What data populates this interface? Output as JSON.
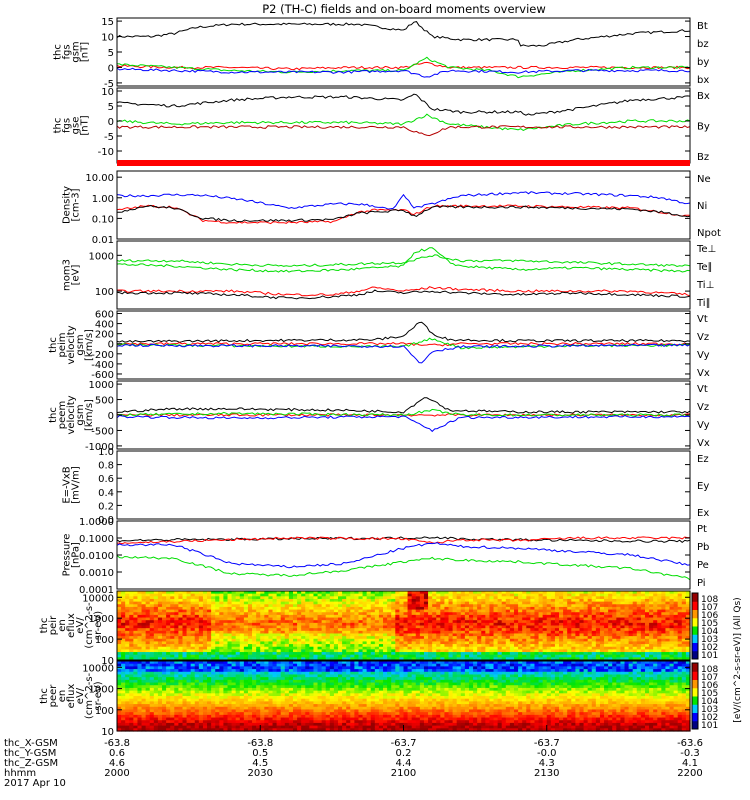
{
  "title": "P2 (TH-C) fields and on-board moments overview",
  "colors": {
    "black": "#000000",
    "red": "#ff0000",
    "green": "#00dd00",
    "blue": "#0000ff",
    "darkred": "#b40000",
    "navy": "#000080"
  },
  "chart_data": [
    {
      "type": "line",
      "ylabel": [
        "thc",
        "fgs",
        "gsm",
        "[nT]"
      ],
      "yticks": [
        "15",
        "10",
        "5",
        "0",
        "-5"
      ],
      "ylim": [
        -6,
        16
      ],
      "legend": [
        {
          "name": "Bt",
          "color": "#000000"
        },
        {
          "name": "bz",
          "color": "#ff0000"
        },
        {
          "name": "by",
          "color": "#00dd00"
        },
        {
          "name": "bx",
          "color": "#0000ff"
        }
      ],
      "series": [
        {
          "name": "Bt",
          "x": [
            0,
            0.06,
            0.1,
            0.14,
            0.2,
            0.3,
            0.42,
            0.5,
            0.52,
            0.55,
            0.6,
            0.7,
            0.7,
            0.74,
            0.8,
            0.9,
            1
          ],
          "y": [
            10,
            10,
            11,
            13,
            14,
            14,
            14,
            12,
            15,
            10,
            9,
            9,
            7,
            7,
            9,
            11,
            12
          ]
        },
        {
          "name": "bz",
          "x": [
            0,
            0.1,
            0.2,
            0.3,
            0.4,
            0.5,
            0.54,
            0.58,
            0.7,
            0.8,
            0.9,
            1
          ],
          "y": [
            0.5,
            0,
            0,
            -0.5,
            0,
            0,
            1.5,
            0,
            0,
            0,
            0,
            0
          ]
        },
        {
          "name": "by",
          "x": [
            0,
            0.1,
            0.2,
            0.3,
            0.4,
            0.5,
            0.54,
            0.58,
            0.65,
            0.7,
            0.75,
            0.8,
            0.9,
            1
          ],
          "y": [
            1,
            0,
            -1,
            -1.5,
            -1,
            -1,
            3,
            0,
            -1,
            -3,
            -2,
            -1,
            0,
            0
          ]
        },
        {
          "name": "bx",
          "x": [
            0,
            0.1,
            0.2,
            0.3,
            0.4,
            0.5,
            0.54,
            0.58,
            0.7,
            0.8,
            0.9,
            1
          ],
          "y": [
            -0.5,
            -1,
            -1.5,
            -1.5,
            -1.5,
            -1,
            -3,
            -1,
            -1.5,
            -1,
            -1,
            -1
          ]
        }
      ]
    },
    {
      "type": "line",
      "ylabel": [
        "thc",
        "fgs",
        "gse",
        "[nT]"
      ],
      "yticks": [
        "10",
        "5",
        "0",
        "-5",
        "-10"
      ],
      "ylim": [
        -14,
        11
      ],
      "legend": [
        {
          "name": "Bx",
          "color": "#000000"
        },
        {
          "name": "By",
          "color": "#00dd00"
        },
        {
          "name": "Bz",
          "color": "#b40000"
        }
      ],
      "series": [
        {
          "name": "Bx",
          "x": [
            0,
            0.1,
            0.2,
            0.3,
            0.4,
            0.5,
            0.52,
            0.55,
            0.6,
            0.7,
            0.72,
            0.8,
            0.9,
            1
          ],
          "y": [
            6,
            5,
            7,
            8,
            8,
            7,
            9,
            4,
            3,
            3,
            2,
            4,
            7,
            8
          ]
        },
        {
          "name": "By",
          "x": [
            0,
            0.1,
            0.2,
            0.3,
            0.4,
            0.5,
            0.54,
            0.58,
            0.7,
            0.8,
            0.9,
            1
          ],
          "y": [
            0,
            -1,
            -0.5,
            -0.5,
            -0.5,
            -1,
            2,
            -1,
            -3,
            -1,
            0,
            0
          ]
        },
        {
          "name": "Bz",
          "x": [
            0,
            0.1,
            0.2,
            0.3,
            0.4,
            0.5,
            0.54,
            0.58,
            0.7,
            0.8,
            0.9,
            1
          ],
          "y": [
            -2,
            -2,
            -2,
            -2,
            -2,
            -2,
            -5,
            -2,
            -2,
            -2,
            -2,
            -2
          ]
        }
      ]
    },
    {
      "type": "line",
      "ylabel": [
        "Density",
        "[cm-3]"
      ],
      "yticks": [
        "10.00",
        "1.00",
        "0.10",
        "0.01"
      ],
      "ylim": [
        -2,
        1.3
      ],
      "log": true,
      "legend": [
        {
          "name": "Ne",
          "color": "#ff0000"
        },
        {
          "name": "Ni",
          "color": "#000000"
        },
        {
          "name": "Npot",
          "color": "#0000ff"
        }
      ],
      "series": [
        {
          "name": "Npot",
          "x": [
            0,
            0.05,
            0.1,
            0.15,
            0.22,
            0.3,
            0.38,
            0.42,
            0.45,
            0.48,
            0.5,
            0.52,
            0.55,
            0.6,
            0.7,
            0.8,
            0.9,
            0.95,
            1
          ],
          "y": [
            0.1,
            0.1,
            0.15,
            0.12,
            -0.1,
            -0.5,
            -0.3,
            -0.3,
            -0.4,
            -0.6,
            0.1,
            -0.5,
            -0.3,
            0.1,
            0.25,
            0.2,
            0.1,
            0,
            -0.3
          ]
        },
        {
          "name": "Ne",
          "x": [
            0,
            0.05,
            0.1,
            0.15,
            0.2,
            0.3,
            0.38,
            0.42,
            0.45,
            0.5,
            0.52,
            0.55,
            0.6,
            0.7,
            0.8,
            0.9,
            0.95,
            1
          ],
          "y": [
            -0.6,
            -0.4,
            -0.45,
            -1.1,
            -1.2,
            -1.2,
            -1.15,
            -0.7,
            -0.6,
            -0.6,
            -0.8,
            -0.4,
            -0.4,
            -0.4,
            -0.45,
            -0.5,
            -0.7,
            -0.9
          ]
        },
        {
          "name": "Ni",
          "x": [
            0,
            0.05,
            0.1,
            0.15,
            0.2,
            0.3,
            0.38,
            0.42,
            0.45,
            0.5,
            0.52,
            0.55,
            0.6,
            0.7,
            0.8,
            0.9,
            0.95,
            1
          ],
          "y": [
            -0.7,
            -0.4,
            -0.5,
            -1.0,
            -1.1,
            -1.1,
            -1.05,
            -0.75,
            -0.7,
            -0.6,
            -0.9,
            -0.45,
            -0.45,
            -0.45,
            -0.5,
            -0.55,
            -0.7,
            -0.9
          ]
        }
      ]
    },
    {
      "type": "line",
      "ylabel": [
        "mom3",
        "[eV]"
      ],
      "yticks": [
        "1000",
        "100"
      ],
      "ylim": [
        1.5,
        3.4
      ],
      "log": true,
      "legend": [
        {
          "name": "Te⊥",
          "color": "#ff0000"
        },
        {
          "name": "Te∥",
          "color": "#000000"
        },
        {
          "name": "Ti⊥",
          "color": "#00dd00"
        },
        {
          "name": "Ti∥",
          "color": "#00dd00"
        }
      ],
      "series": [
        {
          "name": "Ti∥",
          "x": [
            0,
            0.1,
            0.2,
            0.3,
            0.4,
            0.5,
            0.52,
            0.55,
            0.58,
            0.6,
            0.7,
            0.8,
            0.9,
            1
          ],
          "y": [
            2.75,
            2.7,
            2.6,
            2.55,
            2.6,
            2.7,
            3.1,
            3.2,
            2.8,
            2.7,
            2.6,
            2.65,
            2.6,
            2.55
          ]
        },
        {
          "name": "Ti⊥",
          "x": [
            0,
            0.1,
            0.2,
            0.3,
            0.4,
            0.5,
            0.55,
            0.6,
            0.7,
            0.8,
            0.9,
            1
          ],
          "y": [
            2.85,
            2.85,
            2.75,
            2.7,
            2.75,
            2.8,
            3.0,
            2.85,
            2.85,
            2.8,
            2.75,
            2.7
          ]
        },
        {
          "name": "Te⊥",
          "x": [
            0,
            0.1,
            0.2,
            0.3,
            0.38,
            0.42,
            0.45,
            0.5,
            0.55,
            0.6,
            0.7,
            0.8,
            0.9,
            1
          ],
          "y": [
            2.0,
            2.0,
            2.0,
            1.9,
            1.9,
            2.0,
            2.1,
            2.0,
            2.1,
            2.05,
            2.0,
            2.0,
            2.0,
            1.9
          ]
        },
        {
          "name": "Te∥",
          "x": [
            0,
            0.1,
            0.2,
            0.3,
            0.38,
            0.42,
            0.45,
            0.5,
            0.55,
            0.6,
            0.7,
            0.8,
            0.9,
            1
          ],
          "y": [
            1.95,
            1.95,
            1.9,
            1.8,
            1.85,
            1.9,
            2.0,
            1.95,
            2.0,
            1.95,
            1.9,
            1.95,
            1.9,
            1.85
          ]
        }
      ]
    },
    {
      "type": "line",
      "ylabel": [
        "thc",
        "peim",
        "velocity",
        "gsm",
        "[km/s]"
      ],
      "yticks": [
        "600",
        "400",
        "200",
        "0",
        "-200",
        "-400",
        "-600"
      ],
      "ylim": [
        -700,
        650
      ],
      "legend": [
        {
          "name": "Vt",
          "color": "#000000"
        },
        {
          "name": "Vz",
          "color": "#ff0000"
        },
        {
          "name": "Vy",
          "color": "#00dd00"
        },
        {
          "name": "Vx",
          "color": "#0000ff"
        }
      ],
      "series": [
        {
          "name": "Vt",
          "x": [
            0,
            0.2,
            0.45,
            0.5,
            0.53,
            0.55,
            0.58,
            0.7,
            1
          ],
          "y": [
            40,
            60,
            80,
            150,
            450,
            200,
            80,
            60,
            60
          ]
        },
        {
          "name": "Vz",
          "x": [
            0,
            0.2,
            0.5,
            0.55,
            0.6,
            1
          ],
          "y": [
            0,
            0,
            0,
            -30,
            0,
            0
          ]
        },
        {
          "name": "Vy",
          "x": [
            0,
            0.2,
            0.5,
            0.55,
            0.6,
            0.8,
            1
          ],
          "y": [
            -20,
            -40,
            -60,
            100,
            -80,
            -40,
            -30
          ]
        },
        {
          "name": "Vx",
          "x": [
            0,
            0.2,
            0.5,
            0.53,
            0.55,
            0.6,
            0.8,
            1
          ],
          "y": [
            -30,
            -40,
            -50,
            -400,
            -150,
            -60,
            -40,
            -30
          ]
        }
      ]
    },
    {
      "type": "line",
      "ylabel": [
        "thc",
        "peem",
        "velocity",
        "gsm",
        "[km/s]"
      ],
      "yticks": [
        "1000",
        "500",
        "0",
        "-500",
        "-1000"
      ],
      "ylim": [
        -1100,
        1100
      ],
      "legend": [
        {
          "name": "Vt",
          "color": "#000000"
        },
        {
          "name": "Vz",
          "color": "#ff0000"
        },
        {
          "name": "Vy",
          "color": "#00dd00"
        },
        {
          "name": "Vx",
          "color": "#0000ff"
        }
      ],
      "series": [
        {
          "name": "Vt",
          "x": [
            0,
            0.1,
            0.2,
            0.4,
            0.5,
            0.54,
            0.58,
            0.7,
            1
          ],
          "y": [
            100,
            200,
            200,
            150,
            100,
            600,
            150,
            100,
            100
          ]
        },
        {
          "name": "Vz",
          "x": [
            0,
            1
          ],
          "y": [
            0,
            0
          ]
        },
        {
          "name": "Vy",
          "x": [
            0,
            0.2,
            0.5,
            0.55,
            0.6,
            1
          ],
          "y": [
            0,
            50,
            0,
            150,
            0,
            0
          ]
        },
        {
          "name": "Vx",
          "x": [
            0,
            0.2,
            0.5,
            0.55,
            0.6,
            1
          ],
          "y": [
            -50,
            -100,
            -50,
            -500,
            -80,
            -50
          ]
        }
      ]
    },
    {
      "type": "line",
      "ylabel": [
        "E=-VxB",
        "[mV/m]"
      ],
      "yticks": [
        "1.0",
        "0.8",
        "0.6",
        "0.4",
        "0.2",
        "0.0"
      ],
      "ylim": [
        0,
        1
      ],
      "legend": [
        {
          "name": "Ez",
          "color": "#ff0000"
        },
        {
          "name": "Ey",
          "color": "#00dd00"
        },
        {
          "name": "Ex",
          "color": "#0000ff"
        }
      ],
      "series": []
    },
    {
      "type": "line",
      "ylabel": [
        "Pressure",
        "[nPa]"
      ],
      "yticks": [
        "1.0000",
        "0.1000",
        "0.0100",
        "0.0010",
        "0.0001"
      ],
      "ylim": [
        -4,
        0
      ],
      "log": true,
      "legend": [
        {
          "name": "Pt",
          "color": "#000000"
        },
        {
          "name": "Pb",
          "color": "#ff0000"
        },
        {
          "name": "Pe",
          "color": "#00dd00"
        },
        {
          "name": "Pi",
          "color": "#0000ff"
        }
      ],
      "series": [
        {
          "name": "Pt",
          "x": [
            0,
            0.1,
            0.3,
            0.5,
            0.55,
            0.6,
            0.8,
            1
          ],
          "y": [
            -1.15,
            -1.1,
            -1.05,
            -1.0,
            -0.95,
            -1.05,
            -1.15,
            -1.2
          ]
        },
        {
          "name": "Pb",
          "x": [
            0,
            0.1,
            0.3,
            0.5,
            0.55,
            0.6,
            0.7,
            0.8,
            1
          ],
          "y": [
            -1.3,
            -1.2,
            -1.0,
            -1.05,
            -1.3,
            -1.1,
            -1.15,
            -1.0,
            -1.0
          ]
        },
        {
          "name": "Pi",
          "x": [
            0,
            0.1,
            0.2,
            0.3,
            0.4,
            0.5,
            0.55,
            0.6,
            0.7,
            0.8,
            0.9,
            1
          ],
          "y": [
            -1.4,
            -1.4,
            -2.5,
            -2.7,
            -2.5,
            -1.6,
            -1.3,
            -1.5,
            -1.6,
            -1.8,
            -2.0,
            -2.6
          ]
        },
        {
          "name": "Pe",
          "x": [
            0,
            0.1,
            0.2,
            0.3,
            0.4,
            0.5,
            0.55,
            0.6,
            0.7,
            0.8,
            0.9,
            1
          ],
          "y": [
            -2.1,
            -2.2,
            -3.1,
            -3.2,
            -2.9,
            -2.4,
            -2.2,
            -2.3,
            -2.4,
            -2.6,
            -2.8,
            -3.4
          ]
        }
      ]
    },
    {
      "type": "heatmap",
      "ylabel": [
        "thc",
        "peir",
        "en",
        "eflux",
        "eV/",
        "(cm^2-s-",
        "sr-eV)"
      ],
      "yticks": [
        "10000",
        "1000",
        "100",
        "10"
      ],
      "ylim": [
        1,
        4.3
      ],
      "log": true
    },
    {
      "type": "heatmap",
      "ylabel": [
        "thc",
        "peer",
        "en",
        "eflux",
        "eV/",
        "(cm^2-s-",
        "sr-eV)"
      ],
      "yticks": [
        "10000",
        "1000",
        "100",
        "10"
      ],
      "ylim": [
        1,
        4.3
      ],
      "log": true
    }
  ],
  "colorbar": {
    "upper": [
      "10^8",
      "10^7",
      "10^6",
      "10^5",
      "10^4",
      "10^3",
      "10^2",
      "10^1"
    ],
    "lower": [
      "10^8",
      "10^7",
      "10^6",
      "10^5",
      "10^4",
      "10^3",
      "10^2",
      "10^1"
    ],
    "label": "[eV/(cm^2-s-sr-eV)] (All Qs)"
  },
  "xaxis": {
    "rows": [
      {
        "label": "thc_X-GSM",
        "values": [
          "-63.8",
          "-63.8",
          "-63.7",
          "-63.7",
          "-63.6"
        ]
      },
      {
        "label": "thc_Y-GSM",
        "values": [
          "0.6",
          "0.5",
          "0.2",
          "-0.0",
          "-0.3"
        ]
      },
      {
        "label": "thc_Z-GSM",
        "values": [
          "4.6",
          "4.5",
          "4.4",
          "4.3",
          "4.1"
        ]
      },
      {
        "label": "hhmm",
        "values": [
          "2000",
          "2030",
          "2100",
          "2130",
          "2200"
        ]
      }
    ],
    "date": "2017 Apr 10"
  }
}
